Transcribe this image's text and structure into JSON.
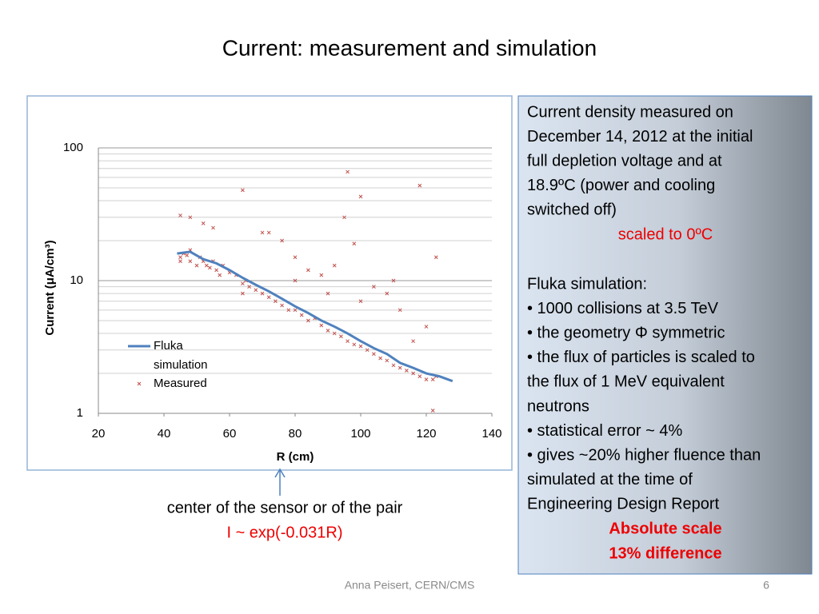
{
  "title": "Current: measurement and simulation",
  "chart_data": {
    "type": "scatter",
    "xlabel": "R (cm)",
    "ylabel": "Current (μA/cm³)",
    "xlim": [
      20,
      140
    ],
    "xticks": [
      20,
      40,
      60,
      80,
      100,
      120,
      140
    ],
    "ylim": [
      1,
      100
    ],
    "yticks": [
      1,
      10,
      100
    ],
    "ylog": true,
    "grid": true,
    "series": [
      {
        "name": "Fluka simulation",
        "kind": "line",
        "color": "#4f81bd",
        "x": [
          44,
          48,
          52,
          56,
          60,
          64,
          68,
          72,
          76,
          80,
          84,
          88,
          92,
          96,
          100,
          104,
          108,
          112,
          116,
          120,
          124,
          128
        ],
        "values": [
          16,
          16.5,
          14.5,
          13.5,
          12,
          10.5,
          9.3,
          8.3,
          7.3,
          6.4,
          5.7,
          5,
          4.5,
          4,
          3.5,
          3.1,
          2.8,
          2.4,
          2.2,
          2,
          1.9,
          1.75
        ]
      },
      {
        "name": "Measured",
        "kind": "scatter",
        "color": "#c0504d",
        "x": [
          45,
          45,
          46,
          47,
          48,
          48,
          50,
          51,
          52,
          53,
          54,
          55,
          56,
          57,
          58,
          60,
          62,
          64,
          64,
          65,
          66,
          68,
          70,
          72,
          74,
          76,
          78,
          80,
          82,
          84,
          86,
          88,
          90,
          92,
          94,
          96,
          98,
          100,
          102,
          104,
          106,
          108,
          110,
          112,
          114,
          116,
          118,
          120,
          122,
          123,
          45,
          48,
          52,
          55,
          64,
          70,
          72,
          76,
          80,
          84,
          88,
          92,
          95,
          96,
          98,
          100,
          104,
          108,
          112,
          118,
          120,
          122,
          123,
          110,
          100,
          90,
          80,
          116
        ],
        "values": [
          15,
          14,
          16,
          15.5,
          17,
          14,
          13,
          15,
          14,
          13,
          12.5,
          14,
          12,
          11,
          13,
          11.5,
          11,
          9.5,
          8,
          10,
          9,
          8.5,
          8,
          7.5,
          7,
          6.5,
          6,
          6,
          5.5,
          5,
          5.2,
          4.6,
          4.2,
          4,
          3.8,
          3.5,
          3.3,
          3.2,
          3,
          2.8,
          2.6,
          2.5,
          2.3,
          2.2,
          2.1,
          2,
          1.9,
          1.8,
          1.8,
          1.9,
          31,
          30,
          27,
          25,
          48,
          23,
          23,
          20,
          15,
          12,
          11,
          13,
          30,
          66,
          19,
          43,
          9,
          8,
          6,
          52,
          4.5,
          1.05,
          15,
          10,
          7,
          8,
          10,
          3.5
        ]
      }
    ]
  },
  "caption": {
    "line1": "center of the sensor or of the pair",
    "formula": "I ~ exp(-0.031R)"
  },
  "note": {
    "lines1": [
      "Current density measured on",
      "December 14, 2012 at the initial",
      "full depletion voltage and at",
      "18.9ºC (power and cooling",
      "switched off)"
    ],
    "scaled": "scaled to 0ºC",
    "lines2": [
      "Fluka simulation:",
      "• 1000 collisions at 3.5 TeV",
      "• the geometry Φ symmetric",
      "• the flux of particles is scaled to",
      "the flux of 1 MeV equivalent",
      "neutrons",
      "• statistical error ~ 4%",
      "• gives ~20% higher fluence than",
      "simulated at the time of",
      "Engineering Design Report"
    ],
    "absolute": "Absolute scale",
    "difference": "13% difference"
  },
  "footer": {
    "author": "Anna Peisert, CERN/CMS",
    "page": "6"
  }
}
